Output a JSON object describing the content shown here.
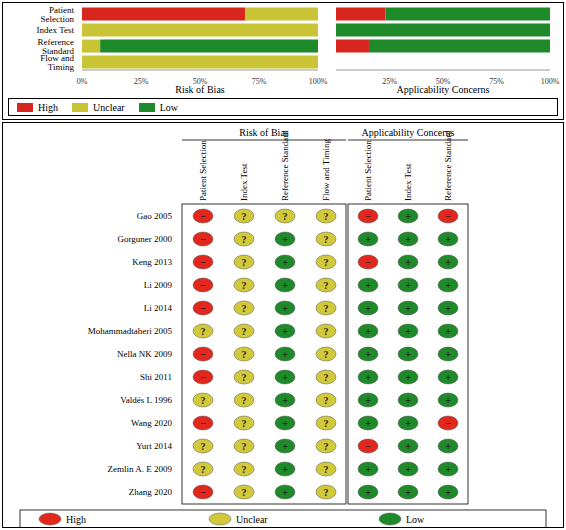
{
  "chart_data": [
    {
      "type": "bar",
      "orientation": "horizontal",
      "stacked": true,
      "x_label": "Risk of Bias",
      "legend": "bottom",
      "categories": [
        "Patient Selection",
        "Index Test",
        "Reference Standard",
        "Flow and Timing"
      ],
      "series": [
        {
          "name": "High",
          "color": "#d7261e",
          "values": [
            69.2,
            0,
            0,
            0
          ]
        },
        {
          "name": "Unclear",
          "color": "#c9c336",
          "values": [
            30.8,
            100,
            7.7,
            100
          ]
        },
        {
          "name": "Low",
          "color": "#1f8a2a",
          "values": [
            0,
            0,
            92.3,
            0
          ]
        }
      ],
      "xlim": [
        0,
        100
      ],
      "xticks": [
        {
          "value": 0,
          "label": "0%"
        },
        {
          "value": 25,
          "label": "25%"
        },
        {
          "value": 50,
          "label": "50%"
        },
        {
          "value": 75,
          "label": "75%"
        },
        {
          "value": 100,
          "label": "100%"
        }
      ]
    },
    {
      "type": "bar",
      "orientation": "horizontal",
      "stacked": true,
      "x_label": "Applicability Concerns",
      "categories": [
        "Patient Selection",
        "Index Test",
        "Reference Standard"
      ],
      "series": [
        {
          "name": "High",
          "color": "#d7261e",
          "values": [
            23.1,
            0,
            15.4
          ]
        },
        {
          "name": "Unclear",
          "color": "#c9c336",
          "values": [
            0,
            0,
            0
          ]
        },
        {
          "name": "Low",
          "color": "#1f8a2a",
          "values": [
            76.9,
            100,
            84.6
          ]
        }
      ],
      "xlim": [
        0,
        100
      ],
      "xticks": [
        {
          "value": 0,
          "label": "0%"
        },
        {
          "value": 25,
          "label": "25%"
        },
        {
          "value": 50,
          "label": "50%"
        },
        {
          "value": 75,
          "label": "75%"
        },
        {
          "value": 100,
          "label": "100%"
        }
      ]
    }
  ],
  "table": {
    "groups": [
      {
        "title": "Risk of Bias",
        "columns": [
          "Patient Selection",
          "Index Test",
          "Reference Standard",
          "Flow and Timing"
        ]
      },
      {
        "title": "Applicability Concerns",
        "columns": [
          "Patient Selection",
          "Index Test",
          "Reference Standard"
        ]
      }
    ],
    "rows": [
      {
        "study": "Gao 2005",
        "cells": [
          "−",
          "?",
          "?",
          "?",
          "−",
          "+",
          "−"
        ]
      },
      {
        "study": "Gorguner 2000",
        "cells": [
          "−",
          "?",
          "+",
          "?",
          "+",
          "+",
          "+"
        ]
      },
      {
        "study": "Keng 2013",
        "cells": [
          "−",
          "?",
          "+",
          "?",
          "−",
          "+",
          "+"
        ]
      },
      {
        "study": "Li 2009",
        "cells": [
          "−",
          "?",
          "+",
          "?",
          "+",
          "+",
          "+"
        ]
      },
      {
        "study": "Li 2014",
        "cells": [
          "−",
          "?",
          "+",
          "?",
          "+",
          "+",
          "+"
        ]
      },
      {
        "study": "Mohammadtaheri 2005",
        "cells": [
          "?",
          "?",
          "+",
          "?",
          "+",
          "+",
          "+"
        ]
      },
      {
        "study": "Nella NK 2009",
        "cells": [
          "−",
          "?",
          "+",
          "?",
          "+",
          "+",
          "+"
        ]
      },
      {
        "study": "Shi 2011",
        "cells": [
          "−",
          "?",
          "+",
          "?",
          "+",
          "+",
          "+"
        ]
      },
      {
        "study": "Valdés L 1996",
        "cells": [
          "?",
          "?",
          "+",
          "?",
          "+",
          "+",
          "+"
        ]
      },
      {
        "study": "Wang 2020",
        "cells": [
          "−",
          "?",
          "+",
          "?",
          "+",
          "+",
          "−"
        ]
      },
      {
        "study": "Yurt 2014",
        "cells": [
          "?",
          "?",
          "+",
          "?",
          "−",
          "+",
          "+"
        ]
      },
      {
        "study": "Zemlin A. E 2009",
        "cells": [
          "?",
          "?",
          "+",
          "?",
          "+",
          "+",
          "+"
        ]
      },
      {
        "study": "Zhang 2020",
        "cells": [
          "−",
          "?",
          "+",
          "?",
          "+",
          "+",
          "+"
        ]
      }
    ],
    "legend": [
      {
        "label": "High",
        "symbol": "−",
        "color": "#e2271d"
      },
      {
        "label": "Unclear",
        "symbol": "?",
        "color": "#d2c93a"
      },
      {
        "label": "Low",
        "symbol": "+",
        "color": "#1f8a2a"
      }
    ]
  }
}
